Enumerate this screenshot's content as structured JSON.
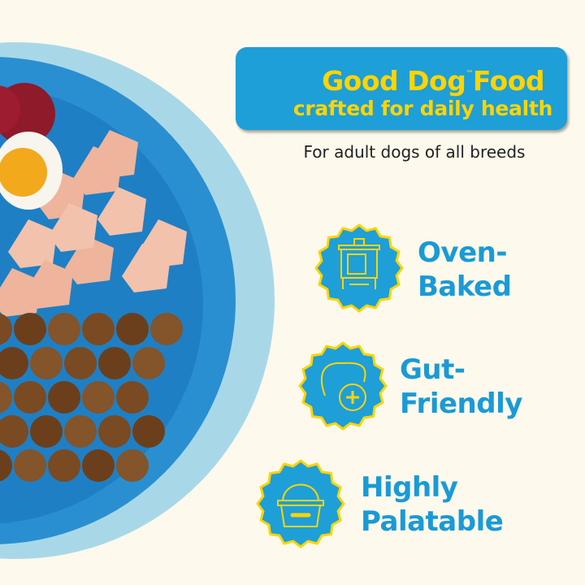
{
  "banner": {
    "brand": "Good Dog",
    "trademark": "™",
    "brand_suffix": "Food",
    "tagline": "crafted for daily health"
  },
  "subtitle": "For adult dogs of all breeds",
  "features": [
    {
      "icon": "oven-icon",
      "line1": "Oven-",
      "line2": "Baked"
    },
    {
      "icon": "gut-health-icon",
      "line1": "Gut-",
      "line2": "Friendly"
    },
    {
      "icon": "food-bowl-icon",
      "line1": "Highly",
      "line2": "Palatable"
    }
  ],
  "colors": {
    "background": "#fdf9ec",
    "brand_blue": "#1e9fd8",
    "accent_yellow": "#ffd400",
    "plate": "#a8d8e8"
  }
}
